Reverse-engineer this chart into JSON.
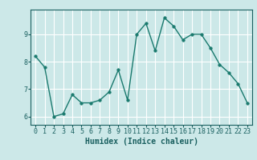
{
  "x": [
    0,
    1,
    2,
    3,
    4,
    5,
    6,
    7,
    8,
    9,
    10,
    11,
    12,
    13,
    14,
    15,
    16,
    17,
    18,
    19,
    20,
    21,
    22,
    23
  ],
  "y": [
    8.2,
    7.8,
    6.0,
    6.1,
    6.8,
    6.5,
    6.5,
    6.6,
    6.9,
    7.7,
    6.6,
    9.0,
    9.4,
    8.4,
    9.6,
    9.3,
    8.8,
    9.0,
    9.0,
    8.5,
    7.9,
    7.6,
    7.2,
    6.5
  ],
  "line_color": "#1a7a6e",
  "marker_color": "#1a7a6e",
  "bg_color": "#cce8e8",
  "grid_color": "#ffffff",
  "axis_label_color": "#1a6060",
  "tick_label_color": "#1a6060",
  "xlabel": "Humidex (Indice chaleur)",
  "ylim": [
    5.7,
    9.9
  ],
  "xlim": [
    -0.5,
    23.5
  ],
  "yticks": [
    6,
    7,
    8,
    9
  ],
  "xticks": [
    0,
    1,
    2,
    3,
    4,
    5,
    6,
    7,
    8,
    9,
    10,
    11,
    12,
    13,
    14,
    15,
    16,
    17,
    18,
    19,
    20,
    21,
    22,
    23
  ],
  "xlabel_fontsize": 7,
  "tick_fontsize": 6,
  "linewidth": 1.0,
  "markersize": 2.5
}
